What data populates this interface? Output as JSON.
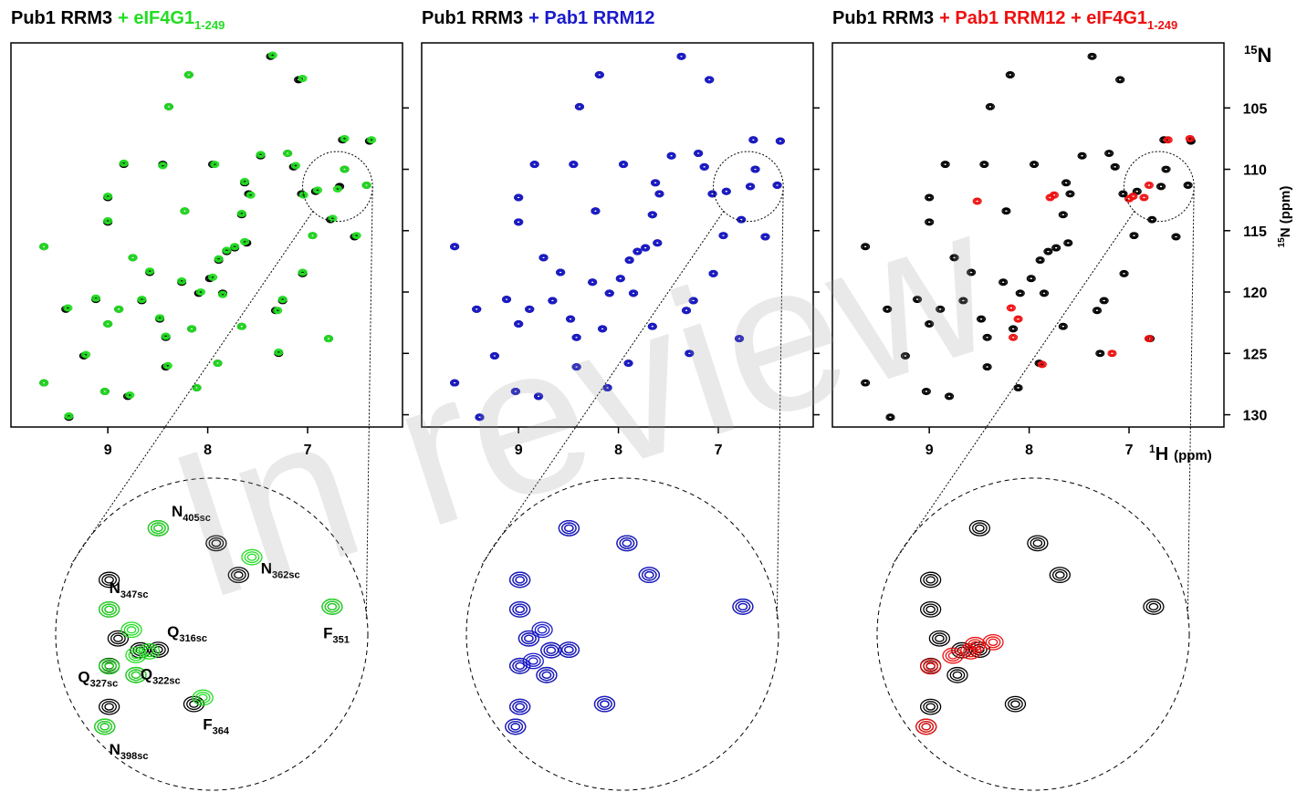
{
  "watermark": "In review",
  "chart_data": [
    {
      "type": "scatter",
      "title": {
        "text": "Pub1 RRM3",
        "addition": "+ eIF4G1",
        "subscript": "1-249",
        "color": "#22dd22"
      },
      "xlim": [
        9.97,
        6.05
      ],
      "ylim": [
        131,
        99.7
      ],
      "xticks": [
        9,
        8,
        7
      ],
      "yticks": [
        105,
        110,
        115,
        120,
        125,
        130
      ],
      "ytick_labels": false,
      "series": [
        {
          "color": "#000000",
          "x": [
            7.37,
            8.19,
            7.09,
            8.39,
            8.84,
            8.45,
            7.95,
            7.47,
            7.2,
            7.14,
            9.0,
            9.0,
            8.23,
            7.63,
            7.59,
            7.06,
            6.92,
            6.68,
            6.41,
            6.63,
            6.38,
            6.65,
            7.66,
            7.61,
            7.81,
            7.73,
            7.89,
            7.98,
            8.09,
            7.85,
            8.26,
            8.58,
            8.75,
            9.12,
            9.42,
            8.89,
            8.66,
            8.48,
            9.0,
            8.42,
            8.16,
            7.66,
            7.32,
            7.05,
            6.79,
            6.53,
            9.64,
            9.24,
            8.42,
            7.9,
            7.29,
            8.11,
            9.03,
            8.8,
            9.64,
            9.39,
            6.77,
            6.95,
            7.25
          ],
          "y": [
            100.8,
            102.3,
            102.7,
            104.9,
            109.6,
            109.6,
            109.6,
            108.9,
            108.7,
            109.8,
            112.3,
            114.3,
            113.4,
            111.1,
            112.0,
            112.0,
            111.8,
            111.4,
            111.3,
            110.0,
            107.7,
            107.6,
            113.7,
            116.0,
            116.7,
            116.4,
            117.4,
            118.9,
            120.1,
            120.1,
            119.2,
            118.4,
            117.2,
            120.6,
            121.4,
            121.4,
            120.7,
            122.2,
            122.6,
            123.7,
            123.0,
            122.8,
            121.5,
            118.5,
            123.8,
            115.5,
            116.3,
            125.2,
            126.1,
            125.8,
            125.0,
            127.8,
            128.1,
            128.5,
            127.4,
            130.2,
            114.1,
            115.4,
            120.7
          ]
        },
        {
          "color": "#22dd22",
          "x": [
            7.35,
            8.19,
            7.05,
            8.39,
            8.84,
            8.45,
            7.93,
            7.47,
            7.2,
            7.12,
            9.0,
            9.0,
            8.23,
            7.63,
            7.57,
            7.04,
            6.9,
            6.7,
            6.41,
            6.63,
            6.36,
            6.63,
            7.66,
            7.63,
            7.81,
            7.73,
            7.89,
            7.95,
            8.07,
            7.85,
            8.26,
            8.58,
            8.75,
            9.12,
            9.4,
            8.89,
            8.66,
            8.48,
            9.0,
            8.42,
            8.16,
            7.66,
            7.3,
            7.05,
            6.79,
            6.51,
            9.64,
            9.22,
            8.4,
            7.9,
            7.29,
            8.11,
            9.03,
            8.78,
            9.64,
            9.39,
            6.75,
            6.95,
            7.25
          ],
          "y": [
            100.7,
            102.3,
            102.6,
            104.9,
            109.5,
            109.7,
            109.6,
            108.8,
            108.7,
            109.7,
            112.2,
            114.2,
            113.4,
            111.0,
            112.1,
            112.1,
            111.7,
            111.6,
            111.3,
            110.0,
            107.6,
            107.5,
            113.6,
            115.9,
            116.6,
            116.3,
            117.3,
            118.8,
            120.0,
            120.2,
            119.1,
            118.3,
            117.2,
            120.5,
            121.3,
            121.4,
            120.6,
            122.1,
            122.6,
            123.6,
            123.0,
            122.8,
            121.5,
            118.4,
            123.8,
            115.4,
            116.3,
            125.1,
            126.0,
            125.8,
            124.9,
            127.8,
            128.1,
            128.4,
            127.4,
            130.1,
            114.0,
            115.4,
            120.6
          ]
        }
      ],
      "inset": {
        "xlim": [
          7.05,
          6.35
        ],
        "ylim": [
          114.3,
          108.5
        ],
        "series": [
          {
            "color": "#000000",
            "x": [
              6.82,
              6.69,
              6.64,
              6.93,
              6.93,
              6.43,
              6.91,
              6.82,
              6.93,
              6.87,
              6.74,
              6.93,
              6.94,
              6.86
            ],
            "y": [
              109.43,
              109.71,
              110.3,
              110.94,
              110.39,
              110.89,
              111.48,
              111.69,
              111.99,
              112.16,
              112.7,
              112.75,
              113.12,
              111.7
            ]
          },
          {
            "color": "#22dd22",
            "x": [
              6.82,
              6.61,
              6.93,
              6.43,
              6.88,
              6.87,
              6.93,
              6.84,
              6.87,
              6.72,
              6.94
            ],
            "y": [
              109.43,
              109.97,
              110.94,
              110.89,
              111.32,
              111.79,
              112.0,
              111.72,
              112.16,
              112.58,
              113.12
            ]
          }
        ],
        "annotations": [
          {
            "text": "N",
            "subscript": "405sc",
            "x": 6.79,
            "y": 109.21
          },
          {
            "text": "N",
            "subscript": "362sc",
            "x": 6.59,
            "y": 110.27
          },
          {
            "text": "N",
            "subscript": "347sc",
            "x": 6.93,
            "y": 110.64
          },
          {
            "text": "F",
            "subscript": "351",
            "x": 6.45,
            "y": 111.48
          },
          {
            "text": "Q",
            "subscript": "316sc",
            "x": 6.8,
            "y": 111.45
          },
          {
            "text": "Q",
            "subscript": "327sc",
            "x": 7.0,
            "y": 112.29
          },
          {
            "text": "Q",
            "subscript": "322sc",
            "x": 6.86,
            "y": 112.24
          },
          {
            "text": "F",
            "subscript": "364",
            "x": 6.72,
            "y": 113.17
          },
          {
            "text": "N",
            "subscript": "398sc",
            "x": 6.93,
            "y": 113.64
          }
        ]
      }
    },
    {
      "type": "scatter",
      "title": {
        "text": "Pub1 RRM3",
        "addition": "+ Pab1 RRM12",
        "color": "#1a1acc"
      },
      "xlim": [
        9.97,
        6.05
      ],
      "ylim": [
        131,
        99.7
      ],
      "xticks": [
        9,
        8,
        7
      ],
      "yticks": [
        105,
        110,
        115,
        120,
        125,
        130
      ],
      "ytick_labels": false,
      "series": [
        {
          "color": "#000000",
          "x": [
            7.37,
            8.19,
            7.09,
            8.39,
            8.84,
            8.45,
            7.95,
            7.47,
            7.2,
            7.14,
            9.0,
            9.0,
            8.23,
            7.63,
            7.59,
            7.06,
            6.92,
            6.68,
            6.41,
            6.63,
            6.38,
            6.65,
            7.66,
            7.61,
            7.81,
            7.73,
            7.89,
            7.98,
            8.09,
            7.85,
            8.26,
            8.58,
            8.75,
            9.12,
            9.42,
            8.89,
            8.66,
            8.48,
            9.0,
            8.42,
            8.16,
            7.66,
            7.32,
            7.05,
            6.79,
            6.53,
            9.64,
            9.24,
            8.42,
            7.9,
            7.29,
            8.11,
            9.03,
            8.8,
            9.64,
            9.39,
            6.77,
            6.95,
            7.25
          ],
          "y": [
            100.8,
            102.3,
            102.7,
            104.9,
            109.6,
            109.6,
            109.6,
            108.9,
            108.7,
            109.8,
            112.3,
            114.3,
            113.4,
            111.1,
            112.0,
            112.0,
            111.8,
            111.4,
            111.3,
            110.0,
            107.7,
            107.6,
            113.7,
            116.0,
            116.7,
            116.4,
            117.4,
            118.9,
            120.1,
            120.1,
            119.2,
            118.4,
            117.2,
            120.6,
            121.4,
            121.4,
            120.7,
            122.2,
            122.6,
            123.7,
            123.0,
            122.8,
            121.5,
            118.5,
            123.8,
            115.5,
            116.3,
            125.2,
            126.1,
            125.8,
            125.0,
            127.8,
            128.1,
            128.5,
            127.4,
            130.2,
            114.1,
            115.4,
            120.7
          ]
        },
        {
          "color": "#1a1acc",
          "x": [
            7.37,
            8.19,
            7.09,
            8.39,
            8.84,
            8.45,
            7.95,
            7.47,
            7.2,
            7.14,
            9.0,
            9.0,
            8.23,
            7.63,
            7.59,
            7.06,
            6.92,
            6.68,
            6.41,
            6.63,
            6.38,
            6.65,
            7.66,
            7.61,
            7.81,
            7.73,
            7.89,
            7.98,
            8.09,
            7.85,
            8.26,
            8.58,
            8.75,
            9.12,
            9.42,
            8.89,
            8.66,
            8.48,
            9.0,
            8.42,
            8.16,
            7.66,
            7.32,
            7.05,
            6.79,
            6.53,
            9.64,
            9.24,
            8.42,
            7.9,
            7.29,
            8.11,
            9.03,
            8.8,
            9.64,
            9.39,
            6.77,
            6.95,
            7.25
          ],
          "y": [
            100.8,
            102.3,
            102.7,
            104.9,
            109.6,
            109.6,
            109.6,
            108.9,
            108.7,
            109.8,
            112.3,
            114.3,
            113.4,
            111.1,
            112.0,
            112.0,
            111.8,
            111.4,
            111.3,
            110.0,
            107.7,
            107.6,
            113.7,
            116.0,
            116.7,
            116.4,
            117.4,
            118.9,
            120.1,
            120.1,
            119.2,
            118.4,
            117.2,
            120.6,
            121.4,
            121.4,
            120.7,
            122.2,
            122.6,
            123.7,
            123.0,
            122.8,
            121.5,
            118.5,
            123.8,
            115.5,
            116.3,
            125.2,
            126.1,
            125.8,
            125.0,
            127.8,
            128.1,
            128.5,
            127.4,
            130.2,
            114.1,
            115.4,
            120.7
          ]
        }
      ],
      "inset": {
        "xlim": [
          7.05,
          6.35
        ],
        "ylim": [
          114.3,
          108.5
        ],
        "series": [
          {
            "color": "#000000",
            "x": [
              6.82,
              6.69,
              6.64,
              6.93,
              6.93,
              6.43,
              6.91,
              6.82,
              6.93,
              6.87,
              6.74,
              6.93,
              6.94,
              6.86
            ],
            "y": [
              109.43,
              109.71,
              110.3,
              110.94,
              110.39,
              110.89,
              111.48,
              111.69,
              111.99,
              112.16,
              112.7,
              112.75,
              113.12,
              111.7
            ]
          },
          {
            "color": "#1a1acc",
            "x": [
              6.82,
              6.69,
              6.64,
              6.93,
              6.93,
              6.43,
              6.91,
              6.82,
              6.93,
              6.87,
              6.74,
              6.93,
              6.94,
              6.86,
              6.88,
              6.9
            ],
            "y": [
              109.43,
              109.71,
              110.3,
              110.94,
              110.39,
              110.89,
              111.48,
              111.69,
              111.99,
              112.16,
              112.7,
              112.75,
              113.12,
              111.7,
              111.32,
              111.9
            ]
          }
        ],
        "annotations": []
      }
    },
    {
      "type": "scatter",
      "title": {
        "text": "Pub1 RRM3",
        "addition": "+ Pab1 RRM12 + eIF4G1",
        "subscript": "1-249",
        "color": "#ee1111"
      },
      "xlim": [
        9.97,
        6.05
      ],
      "ylim": [
        131,
        99.7
      ],
      "xticks": [
        9,
        8,
        7
      ],
      "yticks": [
        105,
        110,
        115,
        120,
        125,
        130
      ],
      "ytick_labels": true,
      "y_axis_title": {
        "superscript": "15",
        "text": "N"
      },
      "ylabel": {
        "superscript": "15",
        "text": "N (ppm)"
      },
      "xlabel": {
        "superscript": "1",
        "text": "H",
        "unit": "(ppm)"
      },
      "series": [
        {
          "color": "#000000",
          "x": [
            7.37,
            8.19,
            7.09,
            8.39,
            8.84,
            8.45,
            7.95,
            7.47,
            7.2,
            7.14,
            9.0,
            9.0,
            8.23,
            7.63,
            7.59,
            7.06,
            6.92,
            6.68,
            6.41,
            6.63,
            6.38,
            6.65,
            7.66,
            7.61,
            7.81,
            7.73,
            7.89,
            7.98,
            8.09,
            7.85,
            8.26,
            8.58,
            8.75,
            9.12,
            9.42,
            8.89,
            8.66,
            8.48,
            9.0,
            8.42,
            8.16,
            7.66,
            7.32,
            7.05,
            6.79,
            6.53,
            9.64,
            9.24,
            8.42,
            7.9,
            7.29,
            8.11,
            9.03,
            8.8,
            9.64,
            9.39,
            6.77,
            6.95,
            7.25
          ],
          "y": [
            100.8,
            102.3,
            102.7,
            104.9,
            109.6,
            109.6,
            109.6,
            108.9,
            108.7,
            109.8,
            112.3,
            114.3,
            113.4,
            111.1,
            112.0,
            112.0,
            111.8,
            111.4,
            111.3,
            110.0,
            107.7,
            107.6,
            113.7,
            116.0,
            116.7,
            116.4,
            117.4,
            118.9,
            120.1,
            120.1,
            119.2,
            118.4,
            117.2,
            120.6,
            121.4,
            121.4,
            120.7,
            122.2,
            122.6,
            123.7,
            123.0,
            122.8,
            121.5,
            118.5,
            123.8,
            115.5,
            116.3,
            125.2,
            126.1,
            125.8,
            125.0,
            127.8,
            128.1,
            128.5,
            127.4,
            130.2,
            114.1,
            115.4,
            120.7
          ]
        },
        {
          "color": "#ee1111",
          "x": [
            8.52,
            7.79,
            7.75,
            7.0,
            6.96,
            8.18,
            8.11,
            8.16,
            7.87,
            7.17,
            6.8,
            6.61,
            6.39,
            6.8,
            6.85
          ],
          "y": [
            112.6,
            112.3,
            112.1,
            112.4,
            112.2,
            121.3,
            122.2,
            123.7,
            125.9,
            125.0,
            123.8,
            107.6,
            107.5,
            111.3,
            112.3
          ]
        }
      ],
      "inset": {
        "xlim": [
          7.05,
          6.35
        ],
        "ylim": [
          114.3,
          108.5
        ],
        "series": [
          {
            "color": "#000000",
            "x": [
              6.82,
              6.69,
              6.64,
              6.93,
              6.93,
              6.43,
              6.91,
              6.82,
              6.93,
              6.87,
              6.74,
              6.93,
              6.94,
              6.86
            ],
            "y": [
              109.43,
              109.71,
              110.3,
              110.94,
              110.39,
              110.89,
              111.48,
              111.69,
              111.99,
              112.16,
              112.7,
              112.75,
              113.12,
              111.7
            ]
          },
          {
            "color": "#ee1111",
            "x": [
              6.93,
              6.88,
              6.84,
              6.94,
              6.83,
              6.79
            ],
            "y": [
              112.0,
              111.8,
              111.72,
              113.12,
              111.6,
              111.55
            ]
          }
        ],
        "annotations": []
      }
    }
  ]
}
